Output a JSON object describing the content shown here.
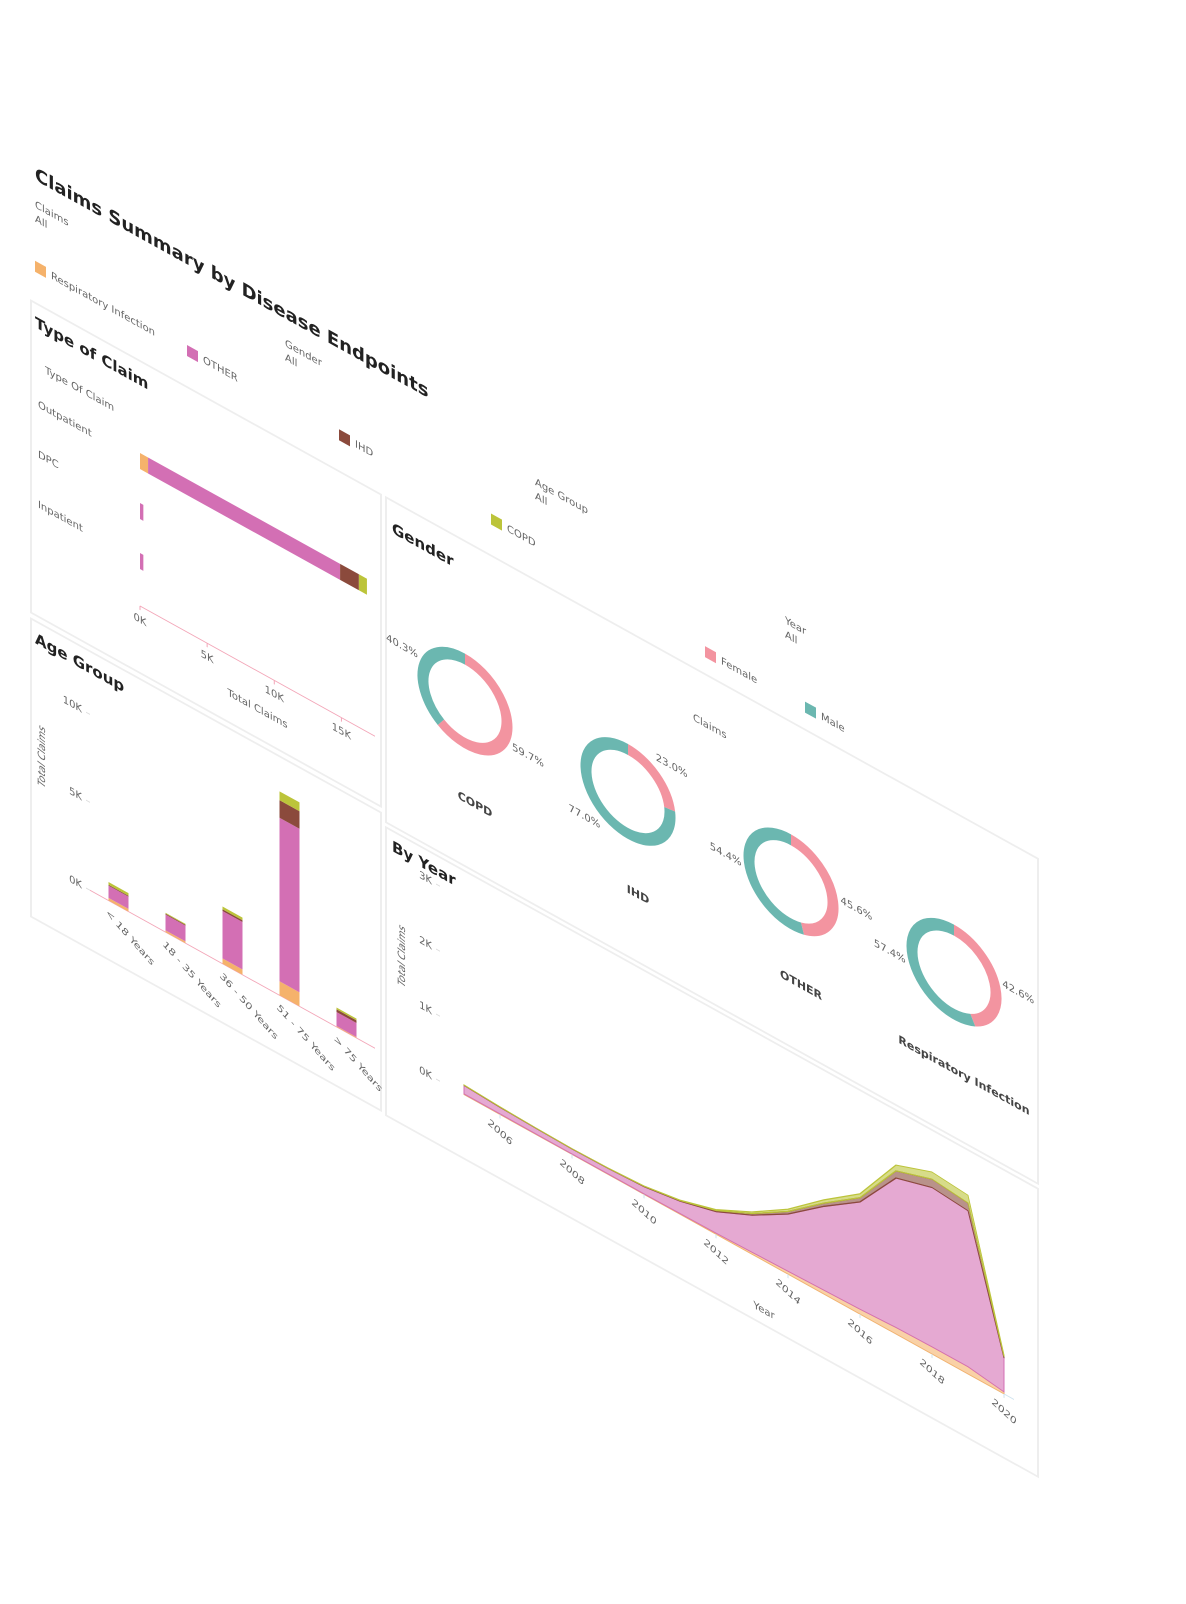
{
  "title": "Claims Summary by Disease Endpoints",
  "filters": [
    {
      "label": "Claims",
      "value": "All"
    },
    {
      "label": "Gender",
      "value": "All"
    },
    {
      "label": "Age Group",
      "value": "All"
    },
    {
      "label": "Year",
      "value": "All"
    }
  ],
  "legend": [
    {
      "name": "Respiratory Infection",
      "color": "#f5b26b"
    },
    {
      "name": "OTHER",
      "color": "#d36fb4"
    },
    {
      "name": "IHD",
      "color": "#8b4a3c"
    },
    {
      "name": "COPD",
      "color": "#bcc43a"
    }
  ],
  "chart_data": [
    {
      "type": "hbar",
      "title": "Type of Claim",
      "ylabel": "Type Of Claim",
      "xlabel": "Total Claims",
      "categories": [
        "Outpatient",
        "DPC",
        "Inpatient"
      ],
      "series": [
        {
          "values": [
            600,
            0,
            0
          ]
        },
        {
          "values": [
            14300,
            250,
            250
          ]
        },
        {
          "values": [
            1400,
            0,
            0
          ]
        },
        {
          "values": [
            600,
            0,
            0
          ]
        }
      ],
      "xlim": [
        0,
        17500
      ],
      "xticks": [
        {
          "value": 0,
          "label": "0K"
        },
        {
          "value": 5000,
          "label": "5K"
        },
        {
          "value": 10000,
          "label": "10K"
        },
        {
          "value": 15000,
          "label": "15K"
        }
      ]
    },
    {
      "type": "pie",
      "title": "Gender",
      "legend_title": "Claims",
      "categories": [
        "COPD",
        "IHD",
        "OTHER",
        "Respiratory Infection"
      ],
      "series": [
        {
          "name": "Female",
          "color": "#f394a0",
          "values": [
            59.7,
            23.0,
            45.6,
            42.6
          ],
          "value_labels": [
            "59.7%",
            "23.0%",
            "45.6%",
            "42.6%"
          ]
        },
        {
          "name": "Male",
          "color": "#6bb7b0",
          "values": [
            40.3,
            77.0,
            54.4,
            57.4
          ],
          "value_labels": [
            "40.3%",
            "77.0%",
            "54.4%",
            "57.4%"
          ]
        }
      ]
    },
    {
      "type": "bar",
      "title": "Age Group",
      "ylabel": "Total Claims",
      "categories": [
        "< 18 Years",
        "18 - 35 Years",
        "36 - 50 Years",
        "51 - 75 Years",
        "> 75 Years"
      ],
      "series": [
        {
          "values": [
            150,
            100,
            300,
            800,
            50
          ]
        },
        {
          "values": [
            700,
            900,
            2700,
            9300,
            800
          ]
        },
        {
          "values": [
            50,
            50,
            100,
            1000,
            150
          ]
        },
        {
          "values": [
            150,
            50,
            150,
            500,
            100
          ]
        }
      ],
      "ylim": [
        0,
        12000
      ],
      "yticks": [
        {
          "value": 0,
          "label": "0K"
        },
        {
          "value": 5000,
          "label": "5K"
        },
        {
          "value": 10000,
          "label": "10K"
        }
      ]
    },
    {
      "type": "area",
      "title": "By Year",
      "xlabel": "Year",
      "ylabel": "Total Claims",
      "x": [
        2005,
        2006,
        2007,
        2008,
        2009,
        2010,
        2011,
        2012,
        2013,
        2014,
        2015,
        2016,
        2017,
        2018,
        2019,
        2020
      ],
      "series": [
        {
          "values": [
            10,
            10,
            8,
            6,
            8,
            8,
            12,
            18,
            30,
            45,
            60,
            75,
            100,
            110,
            110,
            30
          ]
        },
        {
          "values": [
            130,
            100,
            85,
            78,
            84,
            110,
            190,
            330,
            570,
            880,
            1290,
            1650,
            2300,
            2450,
            2400,
            520
          ]
        },
        {
          "values": [
            5,
            5,
            4,
            3,
            4,
            6,
            9,
            16,
            25,
            40,
            50,
            65,
            110,
            130,
            120,
            25
          ]
        },
        {
          "values": [
            5,
            5,
            3,
            3,
            4,
            6,
            9,
            16,
            25,
            35,
            50,
            60,
            90,
            110,
            120,
            25
          ]
        }
      ],
      "xlim": [
        2005,
        2020
      ],
      "xticks": [
        2006,
        2008,
        2010,
        2012,
        2014,
        2016,
        2018,
        2020
      ],
      "ylim": [
        0,
        3000
      ],
      "yticks": [
        {
          "value": 0,
          "label": "0K"
        },
        {
          "value": 1000,
          "label": "1K"
        },
        {
          "value": 2000,
          "label": "2K"
        },
        {
          "value": 3000,
          "label": "3K"
        }
      ]
    }
  ]
}
